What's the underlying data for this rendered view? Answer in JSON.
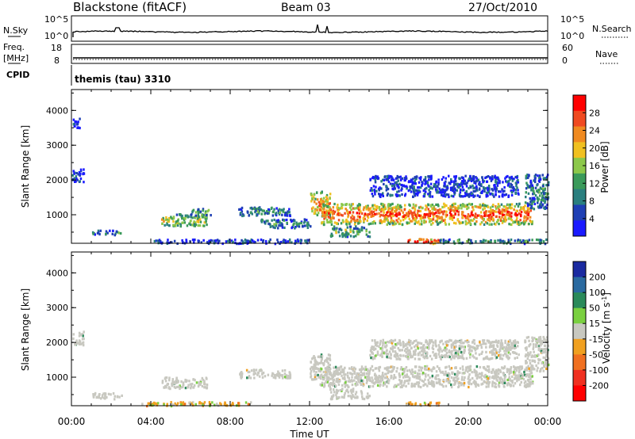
{
  "header": {
    "station": "Blackstone (fitACF)",
    "beam": "Beam 03",
    "date": "27/Oct/2010"
  },
  "params": {
    "nsky_label": "N.Sky",
    "nsearch_label": "N.Search",
    "freq_label_1": "Freq.",
    "freq_label_2": "[MHz]",
    "nave_label": "Nave",
    "cpid_label": "CPID",
    "cpid_value": "themis (tau) 3310",
    "noise_ticks": [
      "10^5",
      "10^0"
    ],
    "noise_ticks_right": [
      "10^5",
      "10^0"
    ],
    "freq_ticks": [
      "18",
      "8"
    ],
    "nave_ticks": [
      "60",
      "0"
    ]
  },
  "colors": {
    "power_scale": [
      "#1a1aff",
      "#1f3fb4",
      "#2a7f7f",
      "#3a9a5a",
      "#8cc84a",
      "#f0c020",
      "#f08a20",
      "#f04a20",
      "#ff0000"
    ],
    "velocity_scale": [
      "#1a2aa0",
      "#2a6aa0",
      "#2a8a5a",
      "#7ad040",
      "#c8c8c0",
      "#f0a020",
      "#f07020",
      "#f03020",
      "#ff0000"
    ]
  },
  "chart_data": [
    {
      "type": "heatmap",
      "panel": "power",
      "xlabel": "",
      "ylabel": "Slant Range [km]",
      "x_ticks": [
        "00:00",
        "04:00",
        "08:00",
        "12:00",
        "16:00",
        "20:00",
        "00:00"
      ],
      "xlim": [
        0,
        24
      ],
      "ylim": [
        180,
        4600
      ],
      "y_ticks": [
        1000,
        2000,
        3000,
        4000
      ],
      "colorbar_label": "Power [dB]",
      "colorbar_ticks": [
        4,
        8,
        12,
        16,
        20,
        24,
        28
      ],
      "colorbar_range": [
        0,
        32
      ],
      "regions": [
        {
          "t0": 0.0,
          "t1": 0.6,
          "r0": 1950,
          "r1": 2350,
          "level": 0.15
        },
        {
          "t0": 0.0,
          "t1": 0.4,
          "r0": 3500,
          "r1": 3800,
          "level": 0.1
        },
        {
          "t0": 1.0,
          "t1": 2.5,
          "r0": 450,
          "r1": 580,
          "level": 0.3
        },
        {
          "t0": 4.5,
          "t1": 6.8,
          "r0": 700,
          "r1": 1050,
          "level": 0.55
        },
        {
          "t0": 6.0,
          "t1": 7.0,
          "r0": 1000,
          "r1": 1200,
          "level": 0.4
        },
        {
          "t0": 8.4,
          "t1": 11.0,
          "r0": 1000,
          "r1": 1250,
          "level": 0.3
        },
        {
          "t0": 9.5,
          "t1": 12.0,
          "r0": 650,
          "r1": 900,
          "level": 0.3
        },
        {
          "t0": 12.0,
          "t1": 13.0,
          "r0": 950,
          "r1": 1700,
          "level": 0.7
        },
        {
          "t0": 12.5,
          "t1": 23.2,
          "r0": 750,
          "r1": 1350,
          "level": 0.8
        },
        {
          "t0": 13.0,
          "t1": 15.0,
          "r0": 400,
          "r1": 700,
          "level": 0.45
        },
        {
          "t0": 15.0,
          "t1": 22.5,
          "r0": 1550,
          "r1": 2150,
          "level": 0.15
        },
        {
          "t0": 16.8,
          "t1": 18.5,
          "r0": 200,
          "r1": 340,
          "level": 0.95
        },
        {
          "t0": 22.8,
          "t1": 24.0,
          "r0": 1200,
          "r1": 2200,
          "level": 0.3
        },
        {
          "t0": 4.0,
          "t1": 12.0,
          "r0": 200,
          "r1": 320,
          "level": 0.15
        },
        {
          "t0": 18.5,
          "t1": 24.0,
          "r0": 200,
          "r1": 320,
          "level": 0.35
        }
      ]
    },
    {
      "type": "heatmap",
      "panel": "velocity",
      "xlabel": "Time UT",
      "ylabel": "Slant Range [km]",
      "x_ticks": [
        "00:00",
        "04:00",
        "08:00",
        "12:00",
        "16:00",
        "20:00",
        "00:00"
      ],
      "xlim": [
        0,
        24
      ],
      "ylim": [
        180,
        4600
      ],
      "y_ticks": [
        1000,
        2000,
        3000,
        4000
      ],
      "colorbar_label": "Velocity [m s^-1]",
      "colorbar_ticks": [
        200,
        100,
        50,
        15,
        -15,
        -50,
        -100,
        -200
      ],
      "regions": [
        {
          "t0": 0.0,
          "t1": 0.6,
          "r0": 1950,
          "r1": 2350,
          "level": 0.0
        },
        {
          "t0": 1.0,
          "t1": 2.5,
          "r0": 400,
          "r1": 580,
          "level": 0.0
        },
        {
          "t0": 4.5,
          "t1": 6.8,
          "r0": 700,
          "r1": 1050,
          "level": 0.0
        },
        {
          "t0": 8.4,
          "t1": 11.0,
          "r0": 1000,
          "r1": 1250,
          "level": 0.0
        },
        {
          "t0": 12.0,
          "t1": 13.0,
          "r0": 950,
          "r1": 1700,
          "level": 0.0
        },
        {
          "t0": 12.5,
          "t1": 23.2,
          "r0": 750,
          "r1": 1350,
          "level": 0.0
        },
        {
          "t0": 13.0,
          "t1": 15.0,
          "r0": 400,
          "r1": 700,
          "level": 0.0
        },
        {
          "t0": 15.0,
          "t1": 22.5,
          "r0": 1550,
          "r1": 2100,
          "level": 0.0
        },
        {
          "t0": 22.8,
          "t1": 24.0,
          "r0": 1200,
          "r1": 2200,
          "level": 0.0
        },
        {
          "t0": 3.5,
          "t1": 9.0,
          "r0": 200,
          "r1": 320,
          "level": -0.55
        },
        {
          "t0": 16.8,
          "t1": 18.5,
          "r0": 200,
          "r1": 320,
          "level": -0.3
        }
      ]
    }
  ]
}
